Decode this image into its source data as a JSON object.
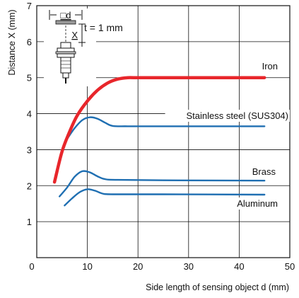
{
  "chart_data": {
    "type": "line",
    "xlabel": "Side length of sensing object d (mm)",
    "ylabel": "Distance X (mm)",
    "xlim": [
      0,
      50
    ],
    "ylim": [
      0,
      7
    ],
    "x_ticks": [
      0,
      10,
      20,
      30,
      40,
      50
    ],
    "y_ticks": [
      1,
      2,
      3,
      4,
      5,
      6,
      7
    ],
    "grid": true,
    "colors": {
      "iron": "#e8262b",
      "others": "#1f6fb2"
    },
    "inset": {
      "box_label": "□d",
      "x_label": "X",
      "thickness": "t = 1 mm"
    },
    "series": [
      {
        "name": "Iron",
        "color": "#e8262b",
        "points": [
          [
            3.5,
            2.1
          ],
          [
            5,
            2.95
          ],
          [
            6.5,
            3.5
          ],
          [
            8,
            3.95
          ],
          [
            10,
            4.35
          ],
          [
            12,
            4.65
          ],
          [
            14,
            4.85
          ],
          [
            16,
            4.96
          ],
          [
            18,
            5.0
          ],
          [
            20,
            5.0
          ],
          [
            30,
            5.0
          ],
          [
            45,
            5.0
          ]
        ]
      },
      {
        "name": "Stainless steel (SUS304)",
        "color": "#1f6fb2",
        "points": [
          [
            6,
            3.3
          ],
          [
            7.5,
            3.6
          ],
          [
            9,
            3.82
          ],
          [
            10.5,
            3.9
          ],
          [
            12,
            3.86
          ],
          [
            13.5,
            3.75
          ],
          [
            15,
            3.66
          ],
          [
            18,
            3.65
          ],
          [
            25,
            3.65
          ],
          [
            45,
            3.65
          ]
        ]
      },
      {
        "name": "Brass",
        "color": "#1f6fb2",
        "points": [
          [
            4.5,
            1.7
          ],
          [
            6,
            1.95
          ],
          [
            7.5,
            2.25
          ],
          [
            9,
            2.4
          ],
          [
            10.5,
            2.37
          ],
          [
            12,
            2.26
          ],
          [
            13.5,
            2.18
          ],
          [
            16,
            2.16
          ],
          [
            25,
            2.15
          ],
          [
            45,
            2.14
          ]
        ]
      },
      {
        "name": "Aluminum",
        "color": "#1f6fb2",
        "points": [
          [
            5.5,
            1.45
          ],
          [
            7,
            1.65
          ],
          [
            8.5,
            1.82
          ],
          [
            10,
            1.9
          ],
          [
            11.5,
            1.86
          ],
          [
            13,
            1.78
          ],
          [
            15,
            1.76
          ],
          [
            25,
            1.76
          ],
          [
            45,
            1.75
          ]
        ]
      }
    ]
  }
}
